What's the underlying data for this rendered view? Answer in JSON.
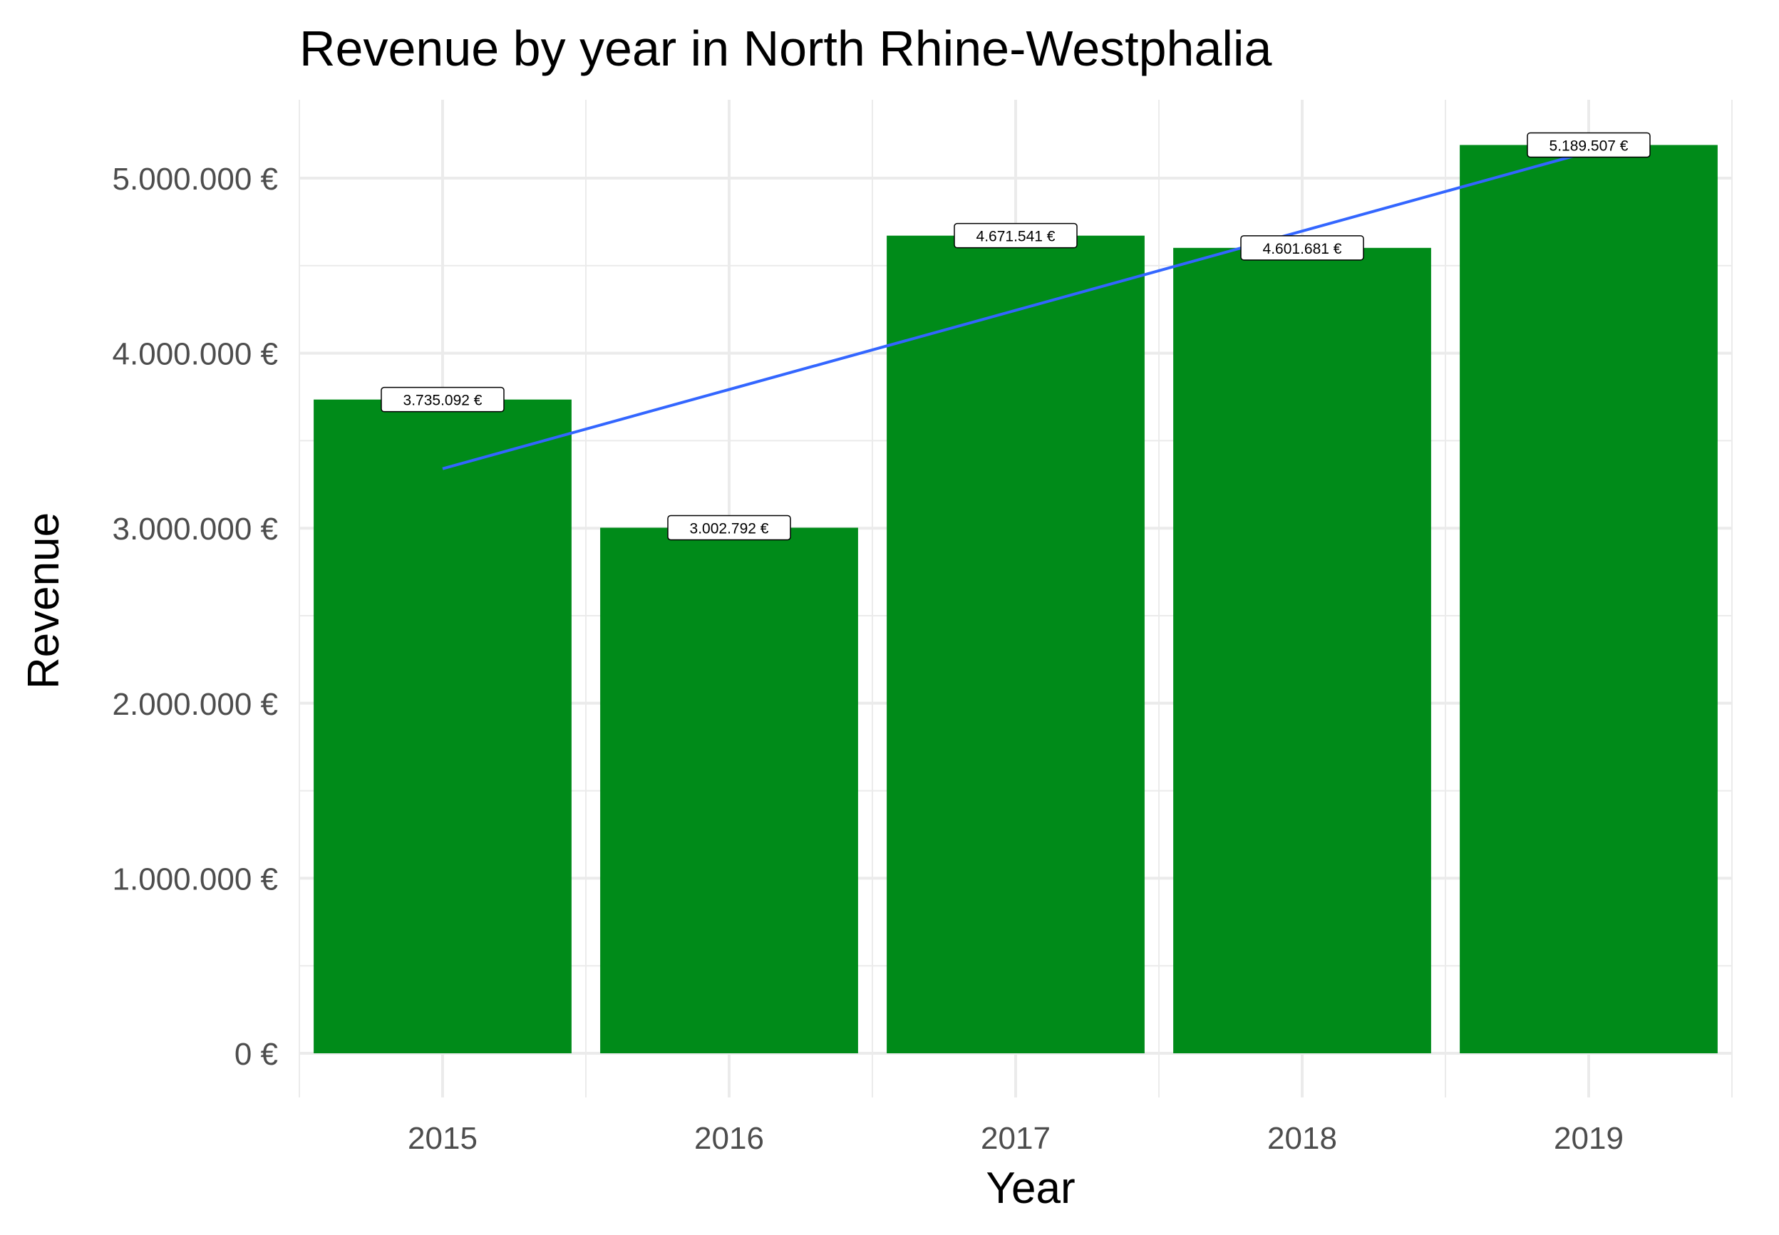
{
  "chart_data": {
    "type": "bar",
    "title": "Revenue by year in North Rhine-Westphalia",
    "xlabel": "Year",
    "ylabel": "Revenue",
    "categories": [
      "2015",
      "2016",
      "2017",
      "2018",
      "2019"
    ],
    "values": [
      3735092,
      3002792,
      4671541,
      4601681,
      5189507
    ],
    "data_labels": [
      "3.735.092 €",
      "3.002.792 €",
      "4.671.541 €",
      "4.601.681 €",
      "5.189.507 €"
    ],
    "ylim": [
      0,
      5400000
    ],
    "y_ticks": [
      0,
      1000000,
      2000000,
      3000000,
      4000000,
      5000000
    ],
    "y_tick_labels": [
      "0 €",
      "1.000.000 €",
      "2.000.000 €",
      "3.000.000 €",
      "4.000.000 €",
      "5.000.000 €"
    ],
    "trend_line": {
      "type": "linear",
      "start": 3340000,
      "end": 5150000
    },
    "grid": true,
    "legend": "none",
    "colors": {
      "bar": "#008b19",
      "trend": "#3366ff",
      "grid": "#ebebeb"
    }
  }
}
